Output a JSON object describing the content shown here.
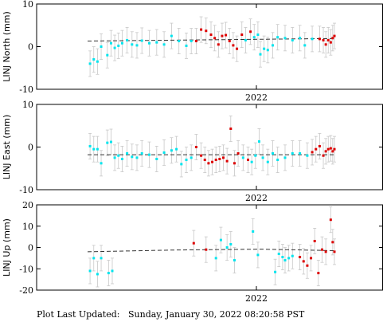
{
  "footer": {
    "label": "Plot Last Updated:",
    "timestamp": "Sunday, January 30, 2022 08:20:58 PST"
  },
  "colors": {
    "cyan": "#00e5ee",
    "red": "#dd0000",
    "errorbar": "#c8c8c8",
    "trend": "#333333",
    "axis": "#000000"
  },
  "chart_data": [
    {
      "type": "scatter",
      "ylabel": "LINJ North (mm)",
      "ylim": [
        -10,
        10
      ],
      "yticks": [
        -10,
        0,
        10
      ],
      "xtick_label": "2022",
      "trend": [
        [
          0.0,
          1.3
        ],
        [
          1.0,
          1.9
        ]
      ],
      "points": [
        {
          "x": 0.01,
          "y": -4.0,
          "e": 3.0,
          "c": "cyan"
        },
        {
          "x": 0.025,
          "y": -3.0,
          "e": 3.0,
          "c": "cyan"
        },
        {
          "x": 0.04,
          "y": -3.5,
          "e": 3.0,
          "c": "cyan"
        },
        {
          "x": 0.055,
          "y": 0.0,
          "e": 3.0,
          "c": "cyan"
        },
        {
          "x": 0.08,
          "y": -2.0,
          "e": 3.0,
          "c": "cyan"
        },
        {
          "x": 0.095,
          "y": 0.8,
          "e": 3.0,
          "c": "cyan"
        },
        {
          "x": 0.11,
          "y": -0.3,
          "e": 3.0,
          "c": "cyan"
        },
        {
          "x": 0.125,
          "y": 0.2,
          "e": 3.0,
          "c": "cyan"
        },
        {
          "x": 0.14,
          "y": 0.8,
          "e": 3.0,
          "c": "cyan"
        },
        {
          "x": 0.16,
          "y": 1.5,
          "e": 3.0,
          "c": "cyan"
        },
        {
          "x": 0.18,
          "y": 0.5,
          "e": 3.0,
          "c": "cyan"
        },
        {
          "x": 0.2,
          "y": 0.3,
          "e": 3.0,
          "c": "cyan"
        },
        {
          "x": 0.22,
          "y": 1.4,
          "e": 3.0,
          "c": "cyan"
        },
        {
          "x": 0.25,
          "y": 0.8,
          "e": 3.0,
          "c": "cyan"
        },
        {
          "x": 0.28,
          "y": 1.0,
          "e": 3.0,
          "c": "cyan"
        },
        {
          "x": 0.31,
          "y": 0.5,
          "e": 3.0,
          "c": "cyan"
        },
        {
          "x": 0.34,
          "y": 2.5,
          "e": 3.0,
          "c": "cyan"
        },
        {
          "x": 0.37,
          "y": 1.3,
          "e": 3.0,
          "c": "cyan"
        },
        {
          "x": 0.4,
          "y": 0.2,
          "e": 3.0,
          "c": "cyan"
        },
        {
          "x": 0.42,
          "y": 1.3,
          "e": 3.0,
          "c": "cyan"
        },
        {
          "x": 0.44,
          "y": 1.3,
          "e": 3.0,
          "c": "red"
        },
        {
          "x": 0.46,
          "y": 4.0,
          "e": 3.0,
          "c": "red"
        },
        {
          "x": 0.48,
          "y": 3.7,
          "e": 3.0,
          "c": "red"
        },
        {
          "x": 0.5,
          "y": 2.8,
          "e": 3.0,
          "c": "red"
        },
        {
          "x": 0.515,
          "y": 2.0,
          "e": 3.0,
          "c": "red"
        },
        {
          "x": 0.53,
          "y": 0.5,
          "e": 3.0,
          "c": "red"
        },
        {
          "x": 0.545,
          "y": 2.5,
          "e": 3.0,
          "c": "red"
        },
        {
          "x": 0.56,
          "y": 2.7,
          "e": 3.0,
          "c": "red"
        },
        {
          "x": 0.575,
          "y": 1.3,
          "e": 3.0,
          "c": "red"
        },
        {
          "x": 0.59,
          "y": 0.3,
          "e": 3.0,
          "c": "red"
        },
        {
          "x": 0.605,
          "y": -0.5,
          "e": 3.0,
          "c": "red"
        },
        {
          "x": 0.625,
          "y": 2.8,
          "e": 3.0,
          "c": "red"
        },
        {
          "x": 0.64,
          "y": 1.5,
          "e": 3.0,
          "c": "cyan"
        },
        {
          "x": 0.66,
          "y": 3.5,
          "e": 3.0,
          "c": "red"
        },
        {
          "x": 0.675,
          "y": 2.2,
          "e": 3.0,
          "c": "cyan"
        },
        {
          "x": 0.69,
          "y": 2.8,
          "e": 3.0,
          "c": "cyan"
        },
        {
          "x": 0.7,
          "y": -1.8,
          "e": 3.0,
          "c": "cyan"
        },
        {
          "x": 0.715,
          "y": -0.5,
          "e": 3.0,
          "c": "cyan"
        },
        {
          "x": 0.73,
          "y": -0.8,
          "e": 3.0,
          "c": "cyan"
        },
        {
          "x": 0.75,
          "y": 0.3,
          "e": 3.0,
          "c": "cyan"
        },
        {
          "x": 0.77,
          "y": 2.2,
          "e": 3.0,
          "c": "cyan"
        },
        {
          "x": 0.8,
          "y": 2.0,
          "e": 3.0,
          "c": "cyan"
        },
        {
          "x": 0.83,
          "y": 1.5,
          "e": 3.0,
          "c": "cyan"
        },
        {
          "x": 0.86,
          "y": 2.0,
          "e": 3.0,
          "c": "cyan"
        },
        {
          "x": 0.88,
          "y": 0.3,
          "e": 3.0,
          "c": "cyan"
        },
        {
          "x": 0.91,
          "y": 1.8,
          "e": 3.0,
          "c": "cyan"
        },
        {
          "x": 0.94,
          "y": 1.8,
          "e": 3.0,
          "c": "red"
        },
        {
          "x": 0.955,
          "y": 1.5,
          "e": 3.0,
          "c": "red"
        },
        {
          "x": 0.965,
          "y": 0.5,
          "e": 3.0,
          "c": "red"
        },
        {
          "x": 0.975,
          "y": 1.5,
          "e": 3.0,
          "c": "red"
        },
        {
          "x": 0.985,
          "y": 1.0,
          "e": 3.0,
          "c": "red"
        },
        {
          "x": 0.993,
          "y": 2.0,
          "e": 3.0,
          "c": "red"
        },
        {
          "x": 1.0,
          "y": 2.5,
          "e": 3.0,
          "c": "red"
        }
      ]
    },
    {
      "type": "scatter",
      "ylabel": "LINJ East (mm)",
      "ylim": [
        -10,
        10
      ],
      "yticks": [
        -10,
        0,
        10
      ],
      "xtick_label": "2022",
      "trend": [
        [
          0.0,
          -1.8
        ],
        [
          1.0,
          -1.8
        ]
      ],
      "points": [
        {
          "x": 0.01,
          "y": 0.2,
          "e": 3.0,
          "c": "cyan"
        },
        {
          "x": 0.025,
          "y": -0.5,
          "e": 3.0,
          "c": "cyan"
        },
        {
          "x": 0.04,
          "y": -0.5,
          "e": 3.0,
          "c": "cyan"
        },
        {
          "x": 0.055,
          "y": -3.8,
          "e": 3.0,
          "c": "cyan"
        },
        {
          "x": 0.08,
          "y": 1.0,
          "e": 3.0,
          "c": "cyan"
        },
        {
          "x": 0.095,
          "y": 1.2,
          "e": 3.0,
          "c": "cyan"
        },
        {
          "x": 0.11,
          "y": -2.5,
          "e": 3.0,
          "c": "cyan"
        },
        {
          "x": 0.125,
          "y": -2.0,
          "e": 3.0,
          "c": "cyan"
        },
        {
          "x": 0.14,
          "y": -2.8,
          "e": 3.0,
          "c": "cyan"
        },
        {
          "x": 0.16,
          "y": -1.5,
          "e": 3.0,
          "c": "cyan"
        },
        {
          "x": 0.18,
          "y": -2.3,
          "e": 3.0,
          "c": "cyan"
        },
        {
          "x": 0.2,
          "y": -2.5,
          "e": 3.0,
          "c": "cyan"
        },
        {
          "x": 0.22,
          "y": -1.5,
          "e": 3.0,
          "c": "cyan"
        },
        {
          "x": 0.25,
          "y": -1.8,
          "e": 3.0,
          "c": "cyan"
        },
        {
          "x": 0.28,
          "y": -2.8,
          "e": 3.0,
          "c": "cyan"
        },
        {
          "x": 0.31,
          "y": -1.3,
          "e": 3.0,
          "c": "cyan"
        },
        {
          "x": 0.34,
          "y": -0.8,
          "e": 3.0,
          "c": "cyan"
        },
        {
          "x": 0.36,
          "y": -0.5,
          "e": 3.0,
          "c": "cyan"
        },
        {
          "x": 0.38,
          "y": -4.0,
          "e": 3.0,
          "c": "cyan"
        },
        {
          "x": 0.4,
          "y": -3.0,
          "e": 3.0,
          "c": "cyan"
        },
        {
          "x": 0.42,
          "y": -2.5,
          "e": 3.0,
          "c": "cyan"
        },
        {
          "x": 0.44,
          "y": 0.0,
          "e": 3.0,
          "c": "red"
        },
        {
          "x": 0.46,
          "y": -2.0,
          "e": 3.0,
          "c": "red"
        },
        {
          "x": 0.475,
          "y": -3.0,
          "e": 3.0,
          "c": "red"
        },
        {
          "x": 0.49,
          "y": -3.8,
          "e": 3.0,
          "c": "red"
        },
        {
          "x": 0.505,
          "y": -3.5,
          "e": 3.0,
          "c": "red"
        },
        {
          "x": 0.52,
          "y": -3.0,
          "e": 3.0,
          "c": "red"
        },
        {
          "x": 0.535,
          "y": -2.8,
          "e": 3.0,
          "c": "red"
        },
        {
          "x": 0.55,
          "y": -2.5,
          "e": 3.0,
          "c": "red"
        },
        {
          "x": 0.565,
          "y": -3.3,
          "e": 3.0,
          "c": "red"
        },
        {
          "x": 0.58,
          "y": 4.3,
          "e": 3.0,
          "c": "red"
        },
        {
          "x": 0.595,
          "y": -3.8,
          "e": 3.0,
          "c": "red"
        },
        {
          "x": 0.61,
          "y": -1.5,
          "e": 3.0,
          "c": "red"
        },
        {
          "x": 0.63,
          "y": -2.5,
          "e": 3.0,
          "c": "cyan"
        },
        {
          "x": 0.65,
          "y": -3.0,
          "e": 3.0,
          "c": "red"
        },
        {
          "x": 0.665,
          "y": -3.5,
          "e": 3.0,
          "c": "cyan"
        },
        {
          "x": 0.68,
          "y": -2.0,
          "e": 3.0,
          "c": "cyan"
        },
        {
          "x": 0.695,
          "y": 1.3,
          "e": 3.0,
          "c": "cyan"
        },
        {
          "x": 0.71,
          "y": -2.5,
          "e": 3.0,
          "c": "cyan"
        },
        {
          "x": 0.73,
          "y": -3.5,
          "e": 3.0,
          "c": "cyan"
        },
        {
          "x": 0.75,
          "y": -1.5,
          "e": 3.0,
          "c": "cyan"
        },
        {
          "x": 0.77,
          "y": -3.0,
          "e": 3.0,
          "c": "cyan"
        },
        {
          "x": 0.8,
          "y": -2.5,
          "e": 3.0,
          "c": "cyan"
        },
        {
          "x": 0.83,
          "y": -1.5,
          "e": 3.0,
          "c": "cyan"
        },
        {
          "x": 0.86,
          "y": -1.5,
          "e": 3.0,
          "c": "cyan"
        },
        {
          "x": 0.89,
          "y": -2.0,
          "e": 3.0,
          "c": "cyan"
        },
        {
          "x": 0.91,
          "y": -1.2,
          "e": 3.0,
          "c": "red"
        },
        {
          "x": 0.925,
          "y": -0.5,
          "e": 3.0,
          "c": "red"
        },
        {
          "x": 0.94,
          "y": 0.2,
          "e": 3.0,
          "c": "red"
        },
        {
          "x": 0.955,
          "y": -2.0,
          "e": 3.0,
          "c": "red"
        },
        {
          "x": 0.965,
          "y": -1.0,
          "e": 3.0,
          "c": "red"
        },
        {
          "x": 0.975,
          "y": -0.5,
          "e": 3.0,
          "c": "red"
        },
        {
          "x": 0.985,
          "y": -0.3,
          "e": 3.0,
          "c": "red"
        },
        {
          "x": 0.993,
          "y": -1.0,
          "e": 3.0,
          "c": "red"
        },
        {
          "x": 1.0,
          "y": -0.5,
          "e": 3.0,
          "c": "red"
        }
      ]
    },
    {
      "type": "scatter",
      "ylabel": "LINJ Up (mm)",
      "ylim": [
        -20,
        20
      ],
      "yticks": [
        -20,
        -10,
        0,
        10,
        20
      ],
      "xtick_label": "2022",
      "trend": [
        [
          0.0,
          -2.0
        ],
        [
          0.35,
          -1.2
        ],
        [
          0.7,
          -0.8
        ],
        [
          1.0,
          -1.5
        ]
      ],
      "points": [
        {
          "x": 0.01,
          "y": -11.0,
          "e": 6.0,
          "c": "cyan"
        },
        {
          "x": 0.025,
          "y": -5.0,
          "e": 6.0,
          "c": "cyan"
        },
        {
          "x": 0.04,
          "y": -12.5,
          "e": 6.0,
          "c": "cyan"
        },
        {
          "x": 0.055,
          "y": -5.0,
          "e": 6.0,
          "c": "cyan"
        },
        {
          "x": 0.085,
          "y": -12.0,
          "e": 6.0,
          "c": "cyan"
        },
        {
          "x": 0.1,
          "y": -11.0,
          "e": 6.0,
          "c": "cyan"
        },
        {
          "x": 0.43,
          "y": 2.0,
          "e": 6.0,
          "c": "red"
        },
        {
          "x": 0.48,
          "y": -1.0,
          "e": 6.0,
          "c": "red"
        },
        {
          "x": 0.52,
          "y": -5.0,
          "e": 6.0,
          "c": "cyan"
        },
        {
          "x": 0.54,
          "y": 3.5,
          "e": 6.0,
          "c": "cyan"
        },
        {
          "x": 0.565,
          "y": 0.0,
          "e": 6.0,
          "c": "cyan"
        },
        {
          "x": 0.58,
          "y": 1.5,
          "e": 6.0,
          "c": "cyan"
        },
        {
          "x": 0.595,
          "y": -6.0,
          "e": 6.0,
          "c": "cyan"
        },
        {
          "x": 0.67,
          "y": 7.5,
          "e": 6.0,
          "c": "cyan"
        },
        {
          "x": 0.69,
          "y": -3.5,
          "e": 6.0,
          "c": "cyan"
        },
        {
          "x": 0.76,
          "y": -11.5,
          "e": 6.0,
          "c": "cyan"
        },
        {
          "x": 0.775,
          "y": -3.0,
          "e": 6.0,
          "c": "cyan"
        },
        {
          "x": 0.79,
          "y": -4.5,
          "e": 6.0,
          "c": "cyan"
        },
        {
          "x": 0.8,
          "y": -6.0,
          "e": 6.0,
          "c": "cyan"
        },
        {
          "x": 0.815,
          "y": -5.0,
          "e": 6.0,
          "c": "cyan"
        },
        {
          "x": 0.83,
          "y": -4.0,
          "e": 6.0,
          "c": "cyan"
        },
        {
          "x": 0.86,
          "y": -4.5,
          "e": 6.0,
          "c": "red"
        },
        {
          "x": 0.875,
          "y": -6.5,
          "e": 6.0,
          "c": "red"
        },
        {
          "x": 0.89,
          "y": -8.5,
          "e": 6.0,
          "c": "red"
        },
        {
          "x": 0.905,
          "y": -5.0,
          "e": 6.0,
          "c": "red"
        },
        {
          "x": 0.92,
          "y": 3.0,
          "e": 6.0,
          "c": "red"
        },
        {
          "x": 0.935,
          "y": -12.0,
          "e": 6.0,
          "c": "red"
        },
        {
          "x": 0.95,
          "y": -1.0,
          "e": 6.0,
          "c": "red"
        },
        {
          "x": 0.965,
          "y": -2.0,
          "e": 6.0,
          "c": "red"
        },
        {
          "x": 0.985,
          "y": 13.0,
          "e": 6.0,
          "c": "red"
        },
        {
          "x": 0.993,
          "y": 2.5,
          "e": 6.0,
          "c": "red"
        },
        {
          "x": 1.0,
          "y": -2.0,
          "e": 6.0,
          "c": "red"
        }
      ]
    }
  ]
}
